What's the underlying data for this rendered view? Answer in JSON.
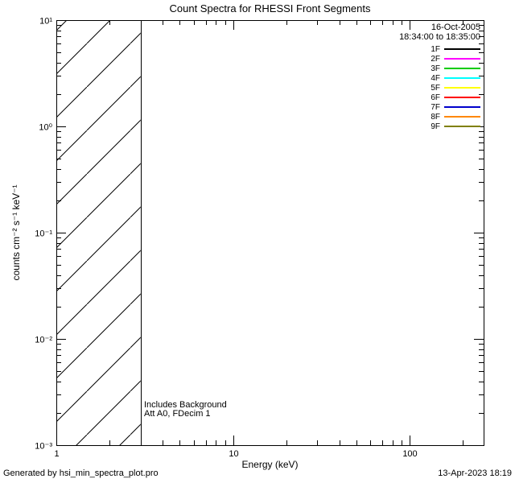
{
  "footer": {
    "left": "Generated by hsi_min_spectra_plot.pro",
    "right": "13-Apr-2023 18:19"
  },
  "chart_data": {
    "type": "line",
    "title": "Count Spectra for RHESSI Front Segments",
    "xlabel": "Energy (keV)",
    "ylabel": "counts cm⁻² s⁻¹ keV⁻¹",
    "x_scale": "log",
    "y_scale": "log",
    "xlim": [
      1,
      262
    ],
    "ylim": [
      0.001,
      10
    ],
    "grid": false,
    "x_ticks": [
      {
        "value": 1,
        "label": "1"
      },
      {
        "value": 10,
        "label": "10"
      },
      {
        "value": 100,
        "label": "100"
      }
    ],
    "y_ticks": [
      {
        "value": 0.001,
        "label": "10⁻³"
      },
      {
        "value": 0.01,
        "label": "10⁻²"
      },
      {
        "value": 0.1,
        "label": "10⁻¹"
      },
      {
        "value": 1,
        "label": "10⁰"
      },
      {
        "value": 10,
        "label": "10¹"
      }
    ],
    "series": [],
    "hatch_region": {
      "x_start": 1,
      "x_end": 3,
      "style": "diagonal-hatch"
    },
    "annotations": [
      "Includes Background",
      "Att A0, FDecim 1"
    ],
    "legend": {
      "position": "top-right",
      "date": "16-Oct-2005",
      "time_range": "18:34:00 to 18:35:00",
      "entries": [
        {
          "label": "1F",
          "color": "#000000"
        },
        {
          "label": "2F",
          "color": "#ff00ff"
        },
        {
          "label": "3F",
          "color": "#00cc00"
        },
        {
          "label": "4F",
          "color": "#00ffff"
        },
        {
          "label": "5F",
          "color": "#ffff00"
        },
        {
          "label": "6F",
          "color": "#ff0000"
        },
        {
          "label": "7F",
          "color": "#0000cc"
        },
        {
          "label": "8F",
          "color": "#ff8800"
        },
        {
          "label": "9F",
          "color": "#808000"
        }
      ]
    }
  }
}
